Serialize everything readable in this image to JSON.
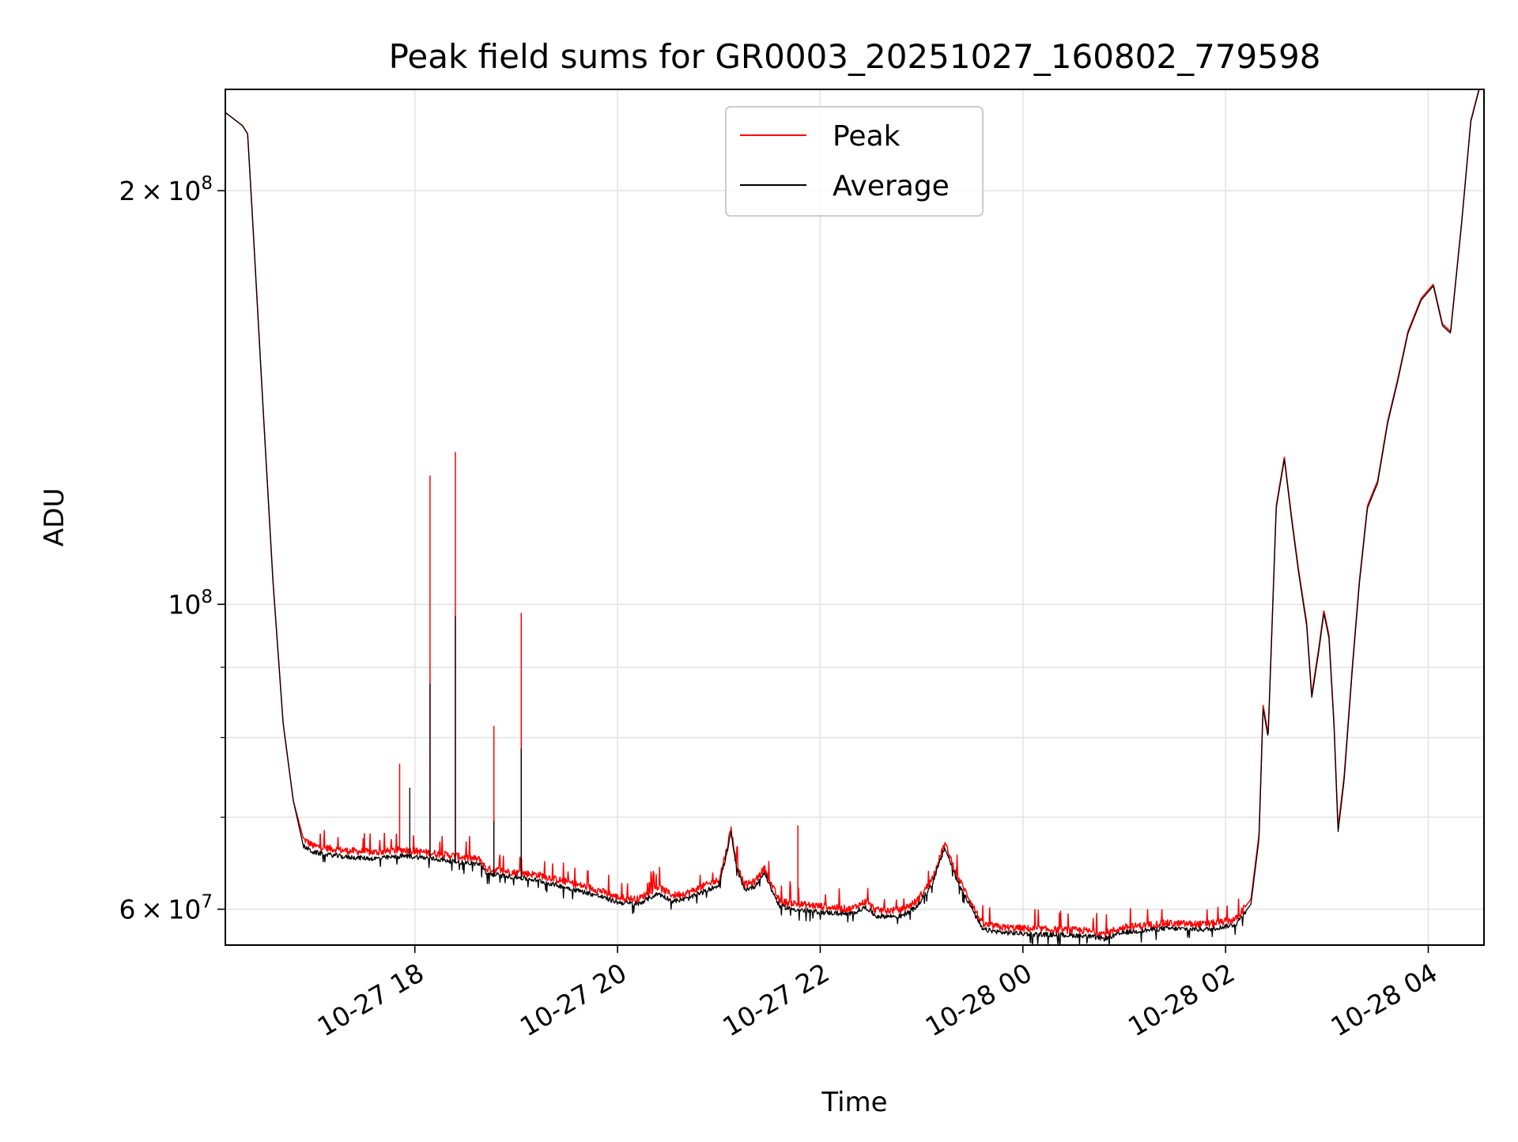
{
  "chart_data": {
    "type": "line",
    "title": "Peak field sums for GR0003_20251027_160802_779598",
    "xlabel": "Time",
    "ylabel": "ADU",
    "yscale": "log",
    "xlim": [
      16.13,
      28.55
    ],
    "ylim": [
      56500000,
      237000000
    ],
    "grid": true,
    "legend_position": "top-center",
    "x_unit": "hours since 2025-10-27 00:00",
    "x_ticks": [
      {
        "value": 18,
        "label": "10-27 18"
      },
      {
        "value": 20,
        "label": "10-27 20"
      },
      {
        "value": 22,
        "label": "10-27 22"
      },
      {
        "value": 24,
        "label": "10-28 00"
      },
      {
        "value": 26,
        "label": "10-28 02"
      },
      {
        "value": 28,
        "label": "10-28 04"
      }
    ],
    "y_major_ticks": [
      {
        "value": 60000000,
        "mantissa": "6",
        "exponent": "7"
      },
      {
        "value": 100000000,
        "mantissa": "",
        "exponent": "8"
      },
      {
        "value": 200000000,
        "mantissa": "2",
        "exponent": "8"
      }
    ],
    "y_minor_ticks": [
      70000000,
      80000000,
      90000000
    ],
    "tick_times_sign": "×",
    "tick_base": "10",
    "series": [
      {
        "name": "Peak",
        "color": "#ff0000",
        "baseline": [
          [
            16.13,
            228000000
          ],
          [
            16.3,
            223000000
          ],
          [
            16.35,
            220000000
          ],
          [
            16.4,
            190000000
          ],
          [
            16.5,
            140000000
          ],
          [
            16.6,
            104000000
          ],
          [
            16.7,
            82000000
          ],
          [
            16.8,
            72000000
          ],
          [
            16.9,
            67500000
          ],
          [
            17.0,
            66700000
          ],
          [
            17.3,
            66200000
          ],
          [
            17.6,
            66000000
          ],
          [
            17.9,
            66300000
          ],
          [
            18.1,
            66000000
          ],
          [
            18.4,
            65600000
          ],
          [
            18.65,
            65200000
          ],
          [
            18.7,
            64200000
          ],
          [
            19.0,
            63800000
          ],
          [
            19.2,
            63600000
          ],
          [
            19.5,
            62800000
          ],
          [
            19.8,
            62000000
          ],
          [
            20.0,
            61200000
          ],
          [
            20.2,
            61000000
          ],
          [
            20.4,
            62300000
          ],
          [
            20.55,
            61400000
          ],
          [
            20.7,
            61700000
          ],
          [
            20.9,
            62600000
          ],
          [
            21.0,
            63000000
          ],
          [
            21.07,
            66000000
          ],
          [
            21.12,
            68700000
          ],
          [
            21.17,
            65000000
          ],
          [
            21.25,
            62500000
          ],
          [
            21.35,
            62800000
          ],
          [
            21.45,
            64300000
          ],
          [
            21.52,
            62500000
          ],
          [
            21.6,
            60800000
          ],
          [
            21.8,
            60500000
          ],
          [
            22.0,
            60300000
          ],
          [
            22.3,
            60000000
          ],
          [
            22.45,
            60800000
          ],
          [
            22.55,
            59900000
          ],
          [
            22.8,
            59900000
          ],
          [
            22.95,
            60800000
          ],
          [
            23.1,
            63000000
          ],
          [
            23.23,
            67000000
          ],
          [
            23.35,
            63500000
          ],
          [
            23.5,
            60500000
          ],
          [
            23.6,
            58500000
          ],
          [
            23.8,
            58200000
          ],
          [
            24.2,
            58000000
          ],
          [
            24.6,
            57900000
          ],
          [
            24.8,
            57600000
          ],
          [
            25.0,
            58200000
          ],
          [
            25.4,
            58600000
          ],
          [
            25.8,
            58500000
          ],
          [
            25.95,
            58700000
          ],
          [
            26.1,
            59000000
          ],
          [
            26.25,
            61000000
          ],
          [
            26.33,
            68000000
          ],
          [
            26.37,
            84500000
          ],
          [
            26.42,
            80500000
          ],
          [
            26.5,
            118000000
          ],
          [
            26.58,
            128000000
          ],
          [
            26.65,
            116000000
          ],
          [
            26.72,
            106000000
          ],
          [
            26.8,
            97000000
          ],
          [
            26.85,
            86000000
          ],
          [
            26.92,
            93000000
          ],
          [
            26.97,
            99000000
          ],
          [
            27.02,
            95000000
          ],
          [
            27.07,
            82000000
          ],
          [
            27.11,
            68800000
          ],
          [
            27.17,
            75000000
          ],
          [
            27.25,
            90000000
          ],
          [
            27.32,
            104000000
          ],
          [
            27.4,
            118000000
          ],
          [
            27.5,
            123000000
          ],
          [
            27.6,
            136000000
          ],
          [
            27.7,
            146000000
          ],
          [
            27.8,
            158000000
          ],
          [
            27.93,
            167000000
          ],
          [
            28.05,
            171000000
          ],
          [
            28.14,
            160000000
          ],
          [
            28.22,
            158000000
          ],
          [
            28.33,
            190000000
          ],
          [
            28.42,
            225000000
          ],
          [
            28.55,
            245000000
          ]
        ],
        "spikes": [
          [
            17.85,
            76500000
          ],
          [
            18.15,
            124000000
          ],
          [
            18.4,
            129000000
          ],
          [
            18.78,
            81500000
          ],
          [
            19.05,
            98500000
          ],
          [
            21.78,
            69000000
          ]
        ]
      },
      {
        "name": "Average",
        "color": "#000000",
        "baseline": [
          [
            16.13,
            228000000
          ],
          [
            16.3,
            223000000
          ],
          [
            16.35,
            220000000
          ],
          [
            16.4,
            190000000
          ],
          [
            16.5,
            140000000
          ],
          [
            16.6,
            104000000
          ],
          [
            16.7,
            82000000
          ],
          [
            16.8,
            72000000
          ],
          [
            16.9,
            66700000
          ],
          [
            17.0,
            66000000
          ],
          [
            17.3,
            65500000
          ],
          [
            17.6,
            65300000
          ],
          [
            17.9,
            65600000
          ],
          [
            18.1,
            65400000
          ],
          [
            18.4,
            65000000
          ],
          [
            18.65,
            64700000
          ],
          [
            18.7,
            63700000
          ],
          [
            19.0,
            63300000
          ],
          [
            19.2,
            63000000
          ],
          [
            19.5,
            62200000
          ],
          [
            19.8,
            61400000
          ],
          [
            20.0,
            60700000
          ],
          [
            20.2,
            60500000
          ],
          [
            20.4,
            61600000
          ],
          [
            20.55,
            60800000
          ],
          [
            20.7,
            61100000
          ],
          [
            20.9,
            62000000
          ],
          [
            21.0,
            62500000
          ],
          [
            21.07,
            65500000
          ],
          [
            21.12,
            68200000
          ],
          [
            21.17,
            64500000
          ],
          [
            21.25,
            62000000
          ],
          [
            21.35,
            62300000
          ],
          [
            21.45,
            63800000
          ],
          [
            21.52,
            62000000
          ],
          [
            21.6,
            60300000
          ],
          [
            21.8,
            59900000
          ],
          [
            22.0,
            59700000
          ],
          [
            22.3,
            59500000
          ],
          [
            22.45,
            60200000
          ],
          [
            22.55,
            59300000
          ],
          [
            22.8,
            59300000
          ],
          [
            22.95,
            60200000
          ],
          [
            23.1,
            62500000
          ],
          [
            23.23,
            66500000
          ],
          [
            23.35,
            63000000
          ],
          [
            23.5,
            60000000
          ],
          [
            23.6,
            58000000
          ],
          [
            23.8,
            57700000
          ],
          [
            24.2,
            57500000
          ],
          [
            24.6,
            57400000
          ],
          [
            24.8,
            57100000
          ],
          [
            25.0,
            57700000
          ],
          [
            25.4,
            58100000
          ],
          [
            25.8,
            58000000
          ],
          [
            25.95,
            58200000
          ],
          [
            26.1,
            58500000
          ],
          [
            26.25,
            60500000
          ],
          [
            26.33,
            67500000
          ],
          [
            26.37,
            84000000
          ],
          [
            26.42,
            80000000
          ],
          [
            26.5,
            117500000
          ],
          [
            26.58,
            127500000
          ],
          [
            26.65,
            115500000
          ],
          [
            26.72,
            105500000
          ],
          [
            26.8,
            96500000
          ],
          [
            26.85,
            85500000
          ],
          [
            26.92,
            92500000
          ],
          [
            26.97,
            98500000
          ],
          [
            27.02,
            94500000
          ],
          [
            27.07,
            81500000
          ],
          [
            27.11,
            68300000
          ],
          [
            27.17,
            74500000
          ],
          [
            27.25,
            89500000
          ],
          [
            27.32,
            103500000
          ],
          [
            27.4,
            117500000
          ],
          [
            27.5,
            122500000
          ],
          [
            27.6,
            135500000
          ],
          [
            27.7,
            145500000
          ],
          [
            27.8,
            157500000
          ],
          [
            27.93,
            166500000
          ],
          [
            28.05,
            170500000
          ],
          [
            28.14,
            159500000
          ],
          [
            28.22,
            157500000
          ],
          [
            28.33,
            189500000
          ],
          [
            28.42,
            224500000
          ],
          [
            28.55,
            244500000
          ]
        ],
        "spikes": [
          [
            17.95,
            73500000
          ],
          [
            18.15,
            87500000
          ],
          [
            18.4,
            98000000
          ],
          [
            18.78,
            69500000
          ],
          [
            19.05,
            78500000
          ]
        ]
      }
    ],
    "legend": [
      {
        "label": "Peak",
        "color": "#ff0000"
      },
      {
        "label": "Average",
        "color": "#000000"
      }
    ]
  }
}
